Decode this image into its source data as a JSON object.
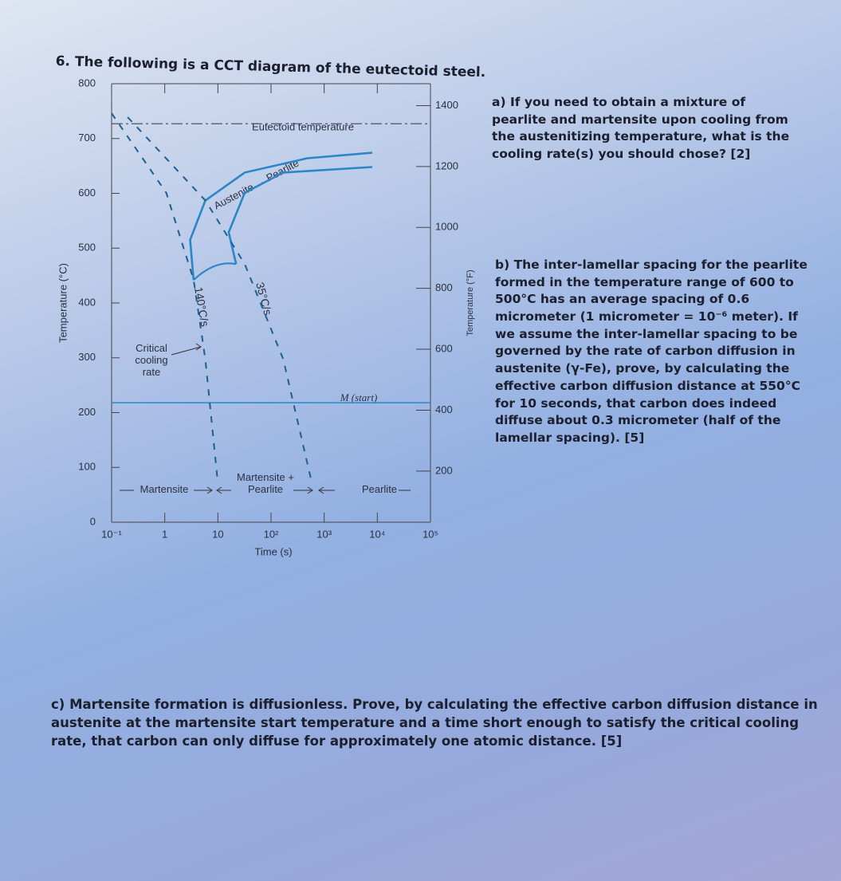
{
  "title": "6. The following is a CCT diagram of the eutectoid steel.",
  "chart_data": {
    "type": "line",
    "xlabel": "Time (s)",
    "ylabel": "Temperature (°C)",
    "y2label": "Temperature (°F)",
    "xscale": "log",
    "xlim": [
      0.1,
      100000
    ],
    "xticks": [
      {
        "value": 0.1,
        "label": "10⁻¹"
      },
      1,
      10,
      {
        "value": 100,
        "label": "10²"
      },
      {
        "value": 1000,
        "label": "10³"
      },
      {
        "value": 10000,
        "label": "10⁴"
      },
      {
        "value": 100000,
        "label": "10⁵"
      }
    ],
    "ylim": [
      0,
      800
    ],
    "yticks": [
      0,
      100,
      200,
      300,
      400,
      500,
      600,
      700,
      800
    ],
    "y2lim": [
      32,
      1472
    ],
    "y2ticks": [
      200,
      400,
      600,
      800,
      1000,
      1200,
      1400
    ],
    "color": "#2b86c8",
    "hlines": [
      {
        "value": 727,
        "label": "Eutectoid temperature",
        "dashed": true
      },
      {
        "value": 218,
        "label": "M (start)",
        "dashed": false
      }
    ],
    "curves": [
      {
        "x": [
          3.5,
          3,
          5.8,
          32,
          480,
          8000
        ],
        "values": [
          442,
          515,
          587,
          638,
          664,
          674
        ],
        "dashed": false
      },
      {
        "x": [
          22,
          16,
          32,
          170,
          8000
        ],
        "values": [
          471,
          529,
          601,
          638,
          648
        ],
        "dashed": false
      },
      {
        "name": "140°C/s",
        "x": [
          0.1,
          1.07,
          3.5,
          5.8,
          9.8
        ],
        "values": [
          746,
          601,
          442,
          297,
          80
        ],
        "dashed": true
      },
      {
        "name": "35°C/s",
        "x": [
          0.2,
          5.8,
          32,
          170,
          560
        ],
        "values": [
          739,
          587,
          471,
          297,
          80
        ],
        "dashed": true
      }
    ],
    "annotations": [
      "Austenite → Pearlite",
      "Critical cooling rate",
      "Martensite",
      "Martensite + Pearlite",
      "Pearlite"
    ]
  },
  "parts": [
    "a) If you need to obtain a mixture of pearlite and martensite upon cooling from the austenitizing temperature, what is the cooling rate(s) you should chose? [2]",
    "b) The inter-lamellar spacing for the pearlite formed in the temperature range of 600 to 500°C has an average spacing of 0.6 micrometer (1 micrometer = 10⁻⁶ meter). If we assume the inter-lamellar spacing to be governed by the rate of carbon diffusion in austenite (γ-Fe), prove, by calculating the effective carbon diffusion distance at 550°C for 10 seconds, that carbon does indeed diffuse about 0.3 micrometer (half of the lamellar spacing). [5]",
    "c) Martensite formation is diffusionless. Prove, by calculating the effective carbon diffusion distance in austenite at the martensite start temperature and a time short enough to satisfy the critical cooling rate, that carbon can only diffuse for approximately one atomic distance. [5]"
  ]
}
